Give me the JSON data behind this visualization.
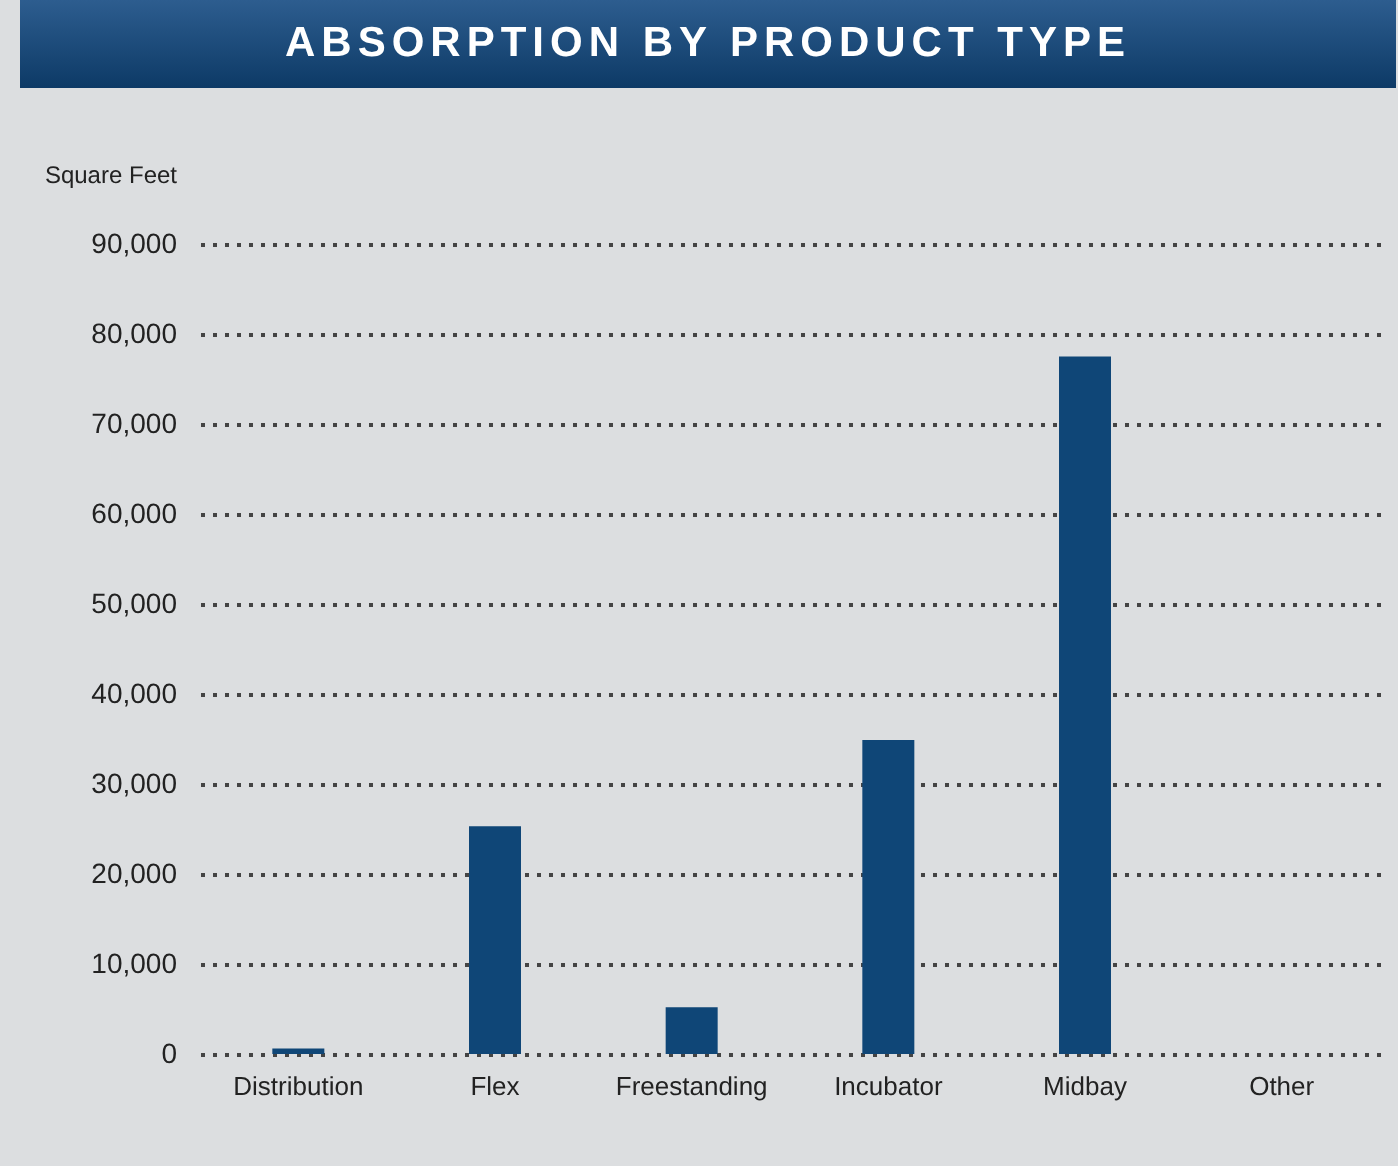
{
  "chart_data": {
    "type": "bar",
    "title": "ABSORPTION BY PRODUCT TYPE",
    "ylabel": "Square Feet",
    "categories": [
      "Distribution",
      "Flex",
      "Freestanding",
      "Incubator",
      "Midbay",
      "Other"
    ],
    "values": [
      600,
      25300,
      5200,
      34900,
      77500,
      0
    ],
    "color": "#0f4677",
    "ylim": [
      0,
      90000
    ],
    "yticks": [
      {
        "value": 0,
        "label": "0"
      },
      {
        "value": 10000,
        "label": "10,000"
      },
      {
        "value": 20000,
        "label": "20,000"
      },
      {
        "value": 30000,
        "label": "30,000"
      },
      {
        "value": 40000,
        "label": "40,000"
      },
      {
        "value": 50000,
        "label": "50,000"
      },
      {
        "value": 60000,
        "label": "60,000"
      },
      {
        "value": 70000,
        "label": "70,000"
      },
      {
        "value": 80000,
        "label": "80,000"
      },
      {
        "value": 90000,
        "label": "90,000"
      }
    ],
    "grid": "y"
  }
}
